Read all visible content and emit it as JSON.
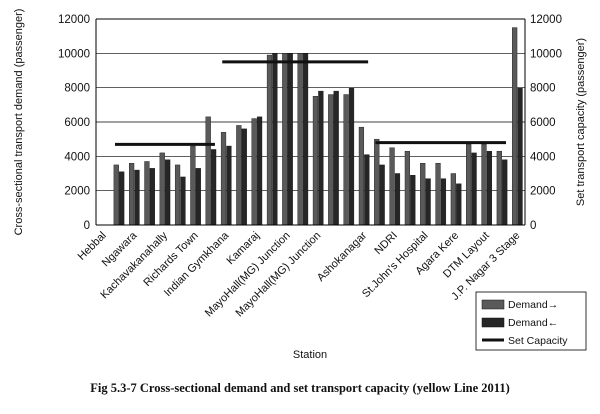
{
  "figure": {
    "caption": "Fig 5.3-7 Cross-sectional demand and set transport capacity (yellow Line 2011)"
  },
  "chart_data": {
    "type": "bar",
    "xlabel": "Station",
    "ylabel_left": "Cross-sectional transport demand (passenger)",
    "ylabel_right": "Set transport capacity (passenger)",
    "ylim": [
      0,
      12000
    ],
    "yticks": [
      0,
      2000,
      4000,
      6000,
      8000,
      10000,
      12000
    ],
    "grid": true,
    "legend_position": "bottom-right",
    "categories": [
      "Hebbal",
      "",
      "Ngawara",
      "",
      "Kachavakanahally",
      "",
      "Richards Town",
      "",
      "Indian Gymkhana",
      "",
      "Kamaraj",
      "",
      "MayoHall(MG) Junction",
      "",
      "MayoHall(MG) Junction",
      "",
      "",
      "Ashokanagar",
      "",
      "NDRI",
      "",
      "St.John's Hospital",
      "",
      "Agara Kere",
      "",
      "DTM Layout",
      "",
      "J.P. Nagar 3 Stage"
    ],
    "series": [
      {
        "name": "Demand→",
        "values": [
          0,
          3500,
          3600,
          3700,
          4200,
          3500,
          4600,
          6300,
          5400,
          5800,
          6200,
          9900,
          10000,
          10000,
          7500,
          7600,
          7600,
          5700,
          5000,
          4500,
          4300,
          3600,
          3600,
          3000,
          4700,
          4700,
          4300,
          11500
        ],
        "color": "#5a5a5a"
      },
      {
        "name": "Demand←",
        "values": [
          0,
          3100,
          3200,
          3300,
          3800,
          2800,
          3300,
          4400,
          4600,
          5600,
          6300,
          10000,
          10000,
          10000,
          7800,
          7800,
          8000,
          4100,
          3500,
          3000,
          2900,
          2700,
          2700,
          2400,
          4200,
          4300,
          3800,
          8000
        ],
        "color": "#262626"
      },
      {
        "name": "Set Capacity",
        "type": "line",
        "segments": [
          {
            "x_from": 1,
            "x_to": 7,
            "value": 4700
          },
          {
            "x_from": 8,
            "x_to": 17,
            "value": 9500
          },
          {
            "x_from": 18,
            "x_to": 26,
            "value": 4800
          }
        ],
        "color": "#111111"
      }
    ]
  }
}
